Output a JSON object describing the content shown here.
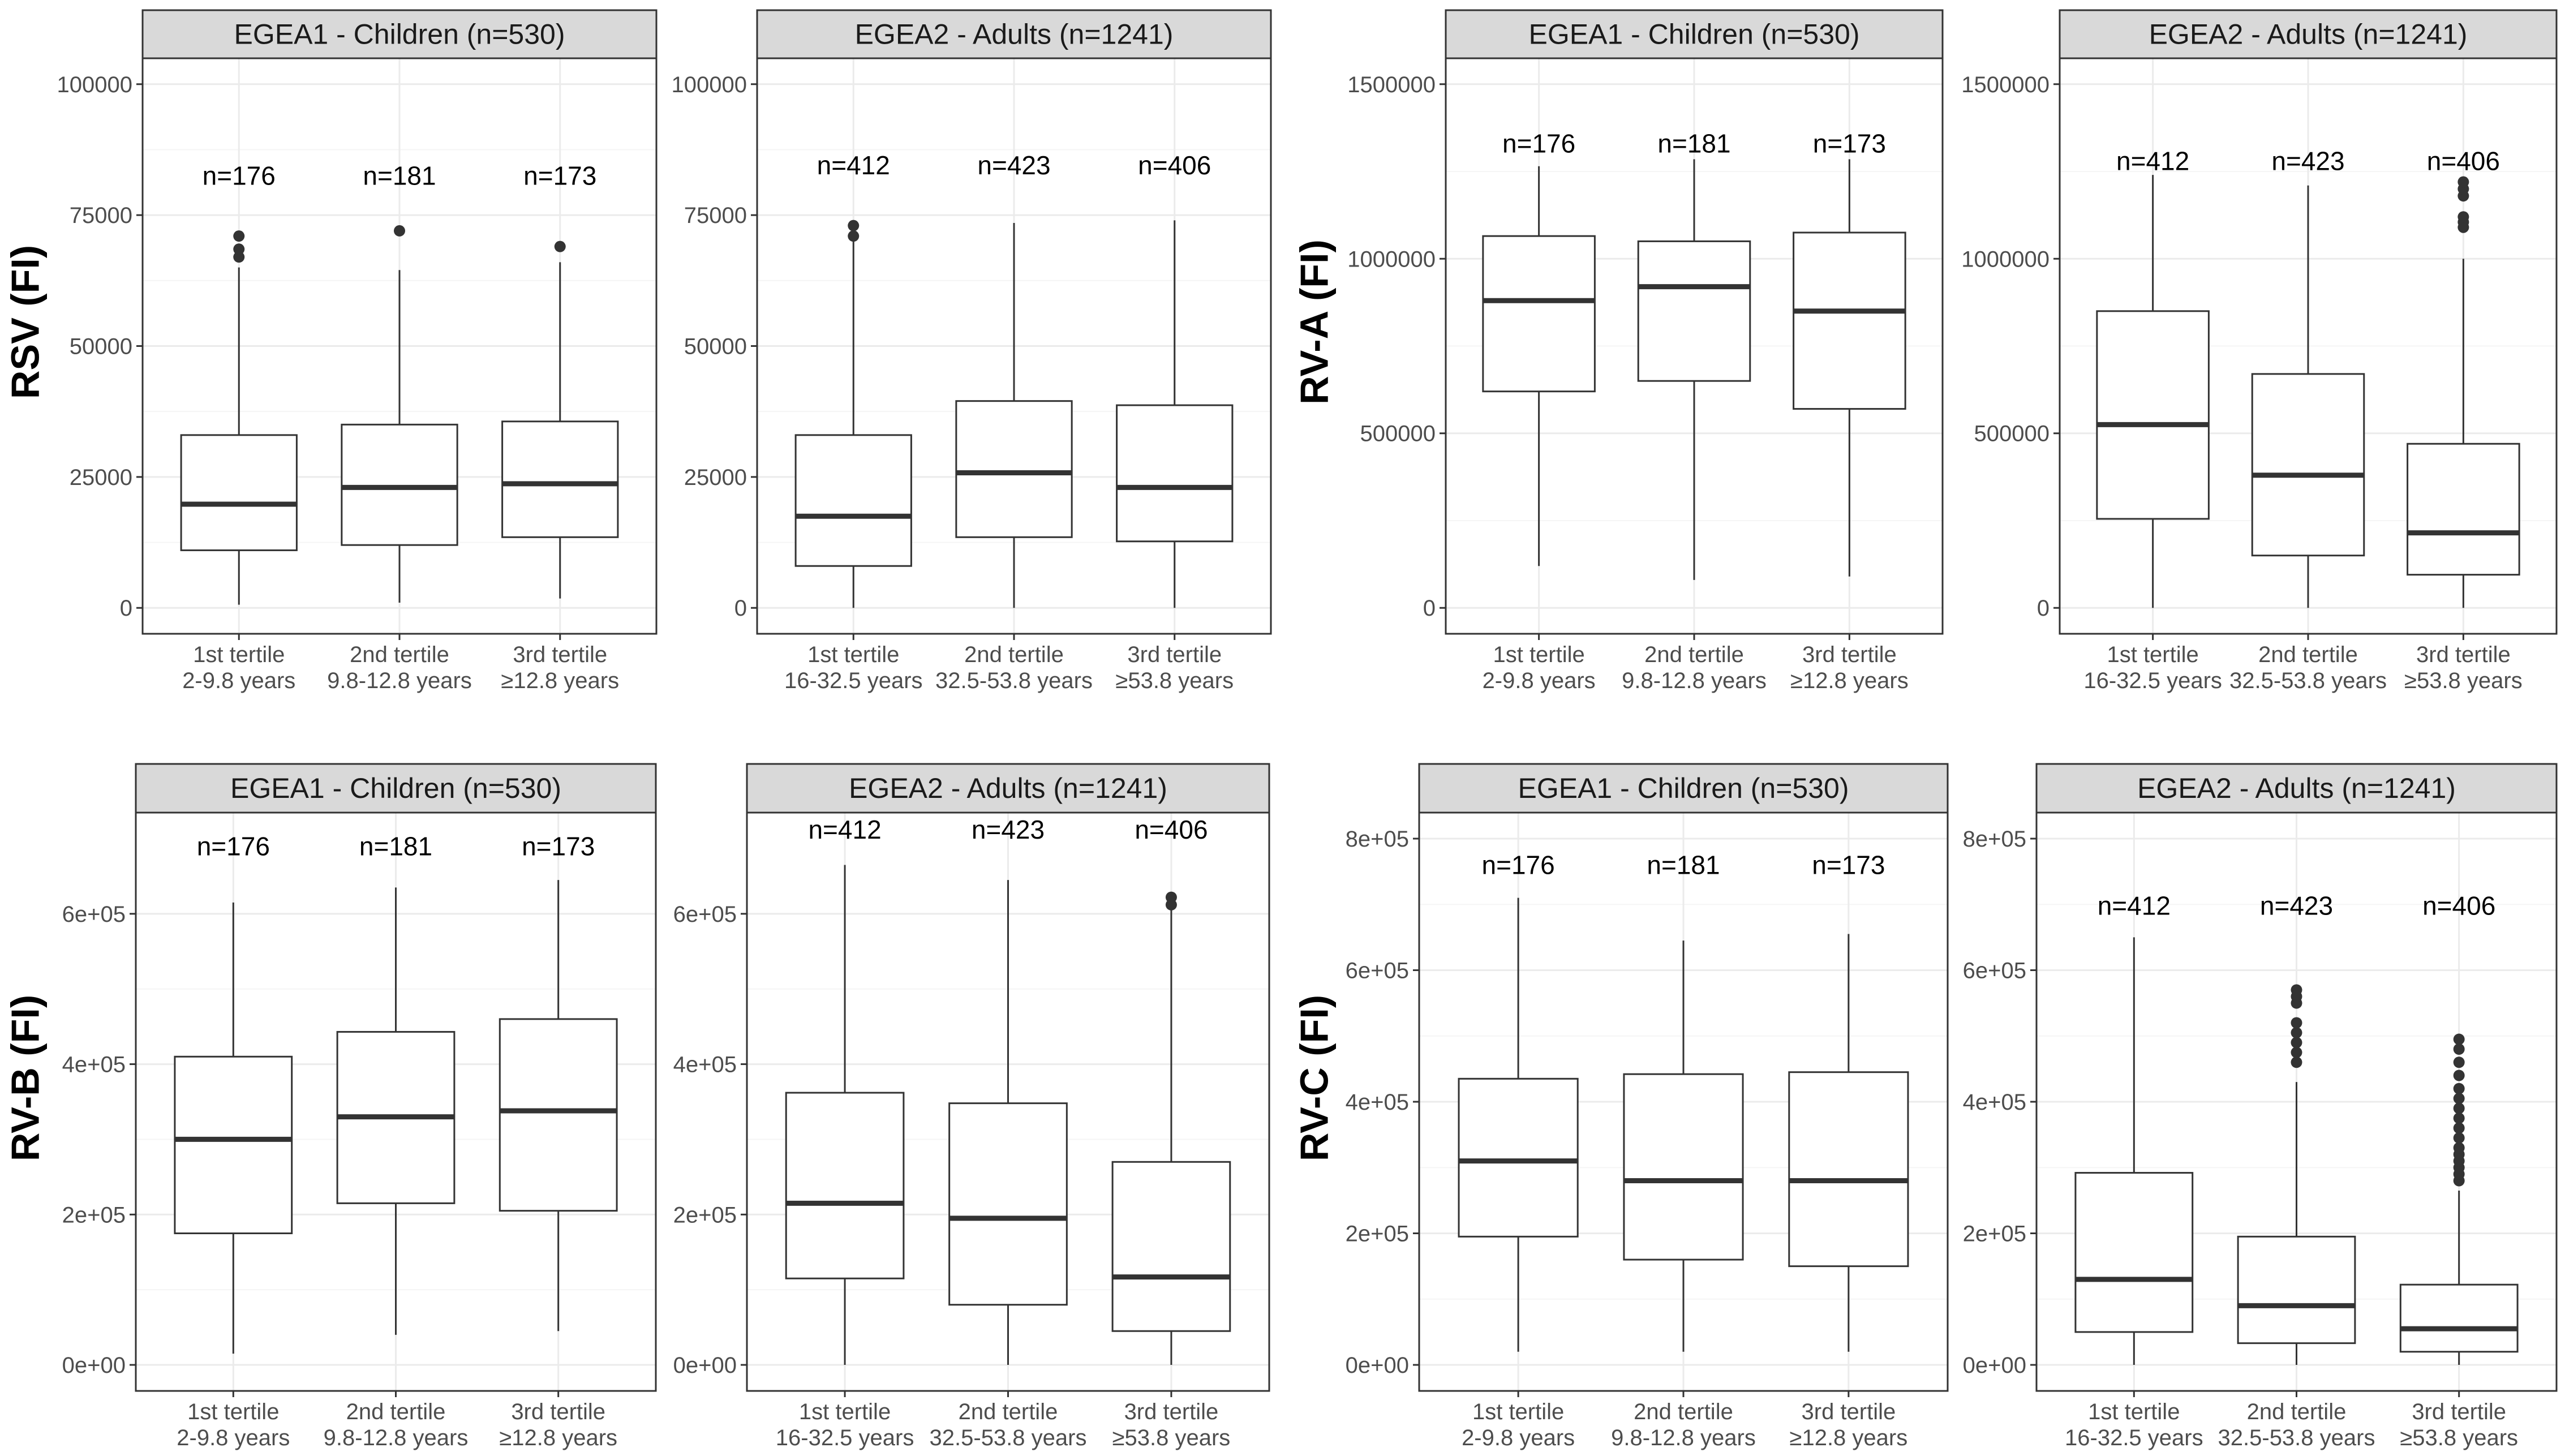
{
  "colors": {
    "strip_fill": "#d9d9d9",
    "panel_border": "#333333",
    "grid_major": "#ebebeb",
    "grid_minor": "#f5f5f5",
    "box_line": "#333333",
    "outlier": "#333333"
  },
  "chart_data": [
    {
      "type": "boxplot",
      "title": "EGEA1 - Children (n=530)",
      "ylabel": "RSV (FI)",
      "ylim": [
        0,
        100000
      ],
      "yticks": [
        0,
        25000,
        50000,
        75000,
        100000
      ],
      "ytick_labels": [
        "0",
        "25000",
        "50000",
        "75000",
        "100000"
      ],
      "grid": true,
      "n_label_y": 82500,
      "categories": [
        "1st tertile\n2-9.8 years",
        "2nd tertile\n9.8-12.8 years",
        "3rd tertile\n≥12.8 years"
      ],
      "boxes": [
        {
          "n": "n=176",
          "low": 600,
          "q1": 11000,
          "median": 19800,
          "q3": 33000,
          "high": 65000,
          "outliers": [
            67000,
            68500,
            71000
          ]
        },
        {
          "n": "n=181",
          "low": 1000,
          "q1": 12000,
          "median": 23000,
          "q3": 35000,
          "high": 64500,
          "outliers": [
            72000
          ]
        },
        {
          "n": "n=173",
          "low": 1800,
          "q1": 13500,
          "median": 23700,
          "q3": 35600,
          "high": 66000,
          "outliers": [
            69000
          ]
        }
      ]
    },
    {
      "type": "boxplot",
      "title": "EGEA2 - Adults (n=1241)",
      "ylabel": "",
      "ylim": [
        0,
        100000
      ],
      "yticks": [
        0,
        25000,
        50000,
        75000,
        100000
      ],
      "ytick_labels": [
        "0",
        "25000",
        "50000",
        "75000",
        "100000"
      ],
      "grid": true,
      "n_label_y": 84500,
      "categories": [
        "1st tertile\n16-32.5 years",
        "2nd tertile\n32.5-53.8 years",
        "3rd tertile\n≥53.8 years"
      ],
      "boxes": [
        {
          "n": "n=412",
          "low": 0,
          "q1": 8000,
          "median": 17500,
          "q3": 33000,
          "high": 70000,
          "outliers": [
            71000,
            73000
          ]
        },
        {
          "n": "n=423",
          "low": 0,
          "q1": 13500,
          "median": 25800,
          "q3": 39500,
          "high": 73500,
          "outliers": []
        },
        {
          "n": "n=406",
          "low": 0,
          "q1": 12700,
          "median": 23000,
          "q3": 38700,
          "high": 74000,
          "outliers": []
        }
      ]
    },
    {
      "type": "boxplot",
      "title": "EGEA1 - Children (n=530)",
      "ylabel": "RV-A (FI)",
      "ylim": [
        0,
        1500000
      ],
      "yticks": [
        0,
        500000,
        1000000,
        1500000
      ],
      "ytick_labels": [
        "0",
        "500000",
        "1000000",
        "1500000"
      ],
      "grid": true,
      "n_label_y": 1330000,
      "categories": [
        "1st tertile\n2-9.8 years",
        "2nd tertile\n9.8-12.8 years",
        "3rd tertile\n≥12.8 years"
      ],
      "boxes": [
        {
          "n": "n=176",
          "low": 120000,
          "q1": 620000,
          "median": 880000,
          "q3": 1065000,
          "high": 1265000,
          "outliers": []
        },
        {
          "n": "n=181",
          "low": 80000,
          "q1": 650000,
          "median": 920000,
          "q3": 1050000,
          "high": 1285000,
          "outliers": []
        },
        {
          "n": "n=173",
          "low": 90000,
          "q1": 570000,
          "median": 850000,
          "q3": 1075000,
          "high": 1285000,
          "outliers": []
        }
      ]
    },
    {
      "type": "boxplot",
      "title": "EGEA2 - Adults (n=1241)",
      "ylabel": "",
      "ylim": [
        0,
        1500000
      ],
      "yticks": [
        0,
        500000,
        1000000,
        1500000
      ],
      "ytick_labels": [
        "0",
        "500000",
        "1000000",
        "1500000"
      ],
      "grid": true,
      "n_label_y": 1280000,
      "categories": [
        "1st tertile\n16-32.5 years",
        "2nd tertile\n32.5-53.8 years",
        "3rd tertile\n≥53.8 years"
      ],
      "boxes": [
        {
          "n": "n=412",
          "low": 0,
          "q1": 255000,
          "median": 525000,
          "q3": 850000,
          "high": 1240000,
          "outliers": []
        },
        {
          "n": "n=423",
          "low": 0,
          "q1": 150000,
          "median": 380000,
          "q3": 670000,
          "high": 1210000,
          "outliers": []
        },
        {
          "n": "n=406",
          "low": 0,
          "q1": 95000,
          "median": 215000,
          "q3": 470000,
          "high": 1000000,
          "outliers": [
            1090000,
            1105000,
            1120000,
            1180000,
            1200000,
            1220000
          ]
        }
      ]
    },
    {
      "type": "boxplot",
      "title": "EGEA1 - Children (n=530)",
      "ylabel": "RV-B (FI)",
      "ylim": [
        0,
        700000
      ],
      "yticks": [
        0,
        200000,
        400000,
        600000
      ],
      "ytick_labels": [
        "0e+00",
        "2e+05",
        "4e+05",
        "6e+05"
      ],
      "grid": true,
      "n_label_y": 690000,
      "categories": [
        "1st tertile\n2-9.8 years",
        "2nd tertile\n9.8-12.8 years",
        "3rd tertile\n≥12.8 years"
      ],
      "boxes": [
        {
          "n": "n=176",
          "low": 15000,
          "q1": 175000,
          "median": 300000,
          "q3": 410000,
          "high": 615000,
          "outliers": []
        },
        {
          "n": "n=181",
          "low": 40000,
          "q1": 215000,
          "median": 330000,
          "q3": 443000,
          "high": 635000,
          "outliers": []
        },
        {
          "n": "n=173",
          "low": 45000,
          "q1": 205000,
          "median": 338000,
          "q3": 460000,
          "high": 645000,
          "outliers": []
        }
      ]
    },
    {
      "type": "boxplot",
      "title": "EGEA2 - Adults (n=1241)",
      "ylabel": "",
      "ylim": [
        0,
        700000
      ],
      "yticks": [
        0,
        200000,
        400000,
        600000
      ],
      "ytick_labels": [
        "0e+00",
        "2e+05",
        "4e+05",
        "6e+05"
      ],
      "grid": true,
      "n_label_y": 712000,
      "categories": [
        "1st tertile\n16-32.5 years",
        "2nd tertile\n32.5-53.8 years",
        "3rd tertile\n≥53.8 years"
      ],
      "boxes": [
        {
          "n": "n=412",
          "low": 0,
          "q1": 115000,
          "median": 215000,
          "q3": 362000,
          "high": 665000,
          "outliers": []
        },
        {
          "n": "n=423",
          "low": 0,
          "q1": 80000,
          "median": 195000,
          "q3": 348000,
          "high": 645000,
          "outliers": []
        },
        {
          "n": "n=406",
          "low": 0,
          "q1": 45000,
          "median": 117000,
          "q3": 270000,
          "high": 605000,
          "outliers": [
            612000,
            622000
          ]
        }
      ]
    },
    {
      "type": "boxplot",
      "title": "EGEA1 - Children (n=530)",
      "ylabel": "RV-C (FI)",
      "ylim": [
        0,
        800000
      ],
      "yticks": [
        0,
        200000,
        400000,
        600000,
        800000
      ],
      "ytick_labels": [
        "0e+00",
        "2e+05",
        "4e+05",
        "6e+05",
        "8e+05"
      ],
      "grid": true,
      "n_label_y": 760000,
      "categories": [
        "1st tertile\n2-9.8 years",
        "2nd tertile\n9.8-12.8 years",
        "3rd tertile\n≥12.8 years"
      ],
      "boxes": [
        {
          "n": "n=176",
          "low": 20000,
          "q1": 195000,
          "median": 310000,
          "q3": 435000,
          "high": 710000,
          "outliers": []
        },
        {
          "n": "n=181",
          "low": 20000,
          "q1": 160000,
          "median": 280000,
          "q3": 442000,
          "high": 645000,
          "outliers": []
        },
        {
          "n": "n=173",
          "low": 20000,
          "q1": 150000,
          "median": 280000,
          "q3": 445000,
          "high": 655000,
          "outliers": []
        }
      ]
    },
    {
      "type": "boxplot",
      "title": "EGEA2 - Adults (n=1241)",
      "ylabel": "",
      "ylim": [
        0,
        800000
      ],
      "yticks": [
        0,
        200000,
        400000,
        600000,
        800000
      ],
      "ytick_labels": [
        "0e+00",
        "2e+05",
        "4e+05",
        "6e+05",
        "8e+05"
      ],
      "grid": true,
      "n_label_y": 698000,
      "categories": [
        "1st tertile\n16-32.5 years",
        "2nd tertile\n32.5-53.8 years",
        "3rd tertile\n≥53.8 years"
      ],
      "boxes": [
        {
          "n": "n=412",
          "low": 0,
          "q1": 50000,
          "median": 130000,
          "q3": 292000,
          "high": 650000,
          "outliers": []
        },
        {
          "n": "n=423",
          "low": 0,
          "q1": 33000,
          "median": 90000,
          "q3": 195000,
          "high": 430000,
          "outliers": [
            460000,
            475000,
            490000,
            505000,
            520000,
            550000,
            560000,
            570000
          ]
        },
        {
          "n": "n=406",
          "low": 0,
          "q1": 20000,
          "median": 55000,
          "q3": 122000,
          "high": 265000,
          "outliers": [
            280000,
            290000,
            300000,
            310000,
            320000,
            330000,
            345000,
            360000,
            375000,
            390000,
            405000,
            420000,
            440000,
            460000,
            480000,
            495000
          ]
        }
      ]
    }
  ]
}
